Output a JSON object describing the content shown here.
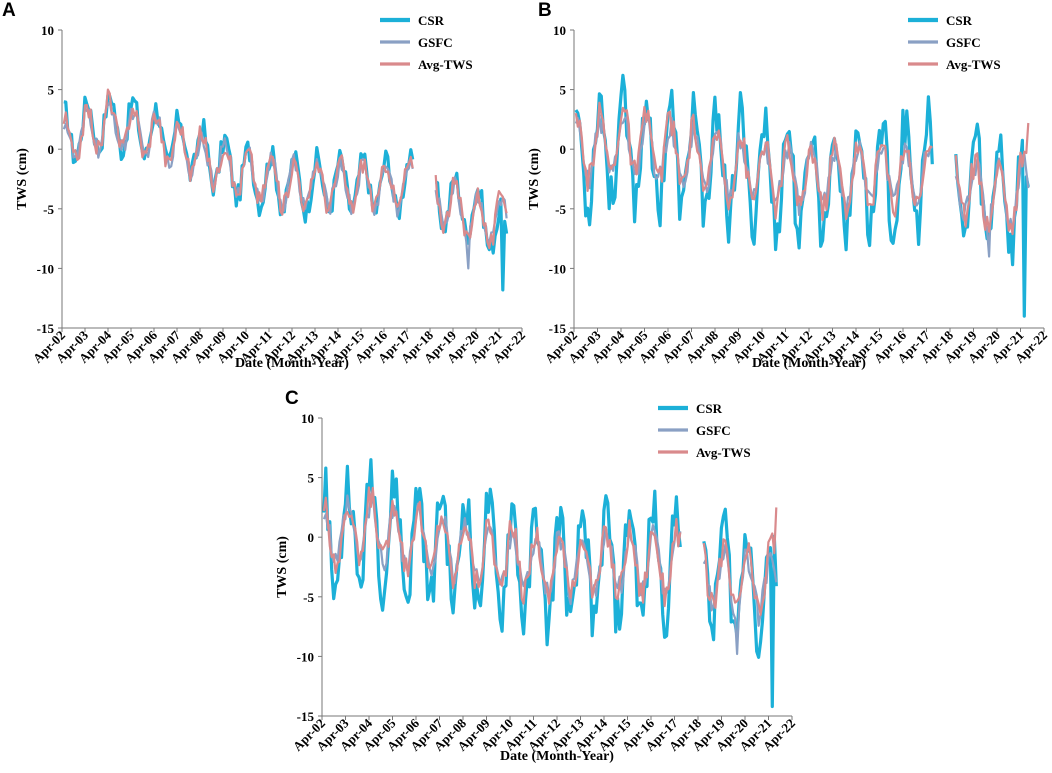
{
  "chart_data": [
    {
      "panel": "A",
      "type": "line",
      "xlabel": "Date (Month-Year)",
      "ylabel": "TWS (cm)",
      "ylim": [
        -15,
        10
      ],
      "yticks": [
        10,
        5,
        0,
        -5,
        -10,
        -15
      ],
      "xlim": [
        2002.25,
        2022.25
      ],
      "x_tick_labels": [
        "Apr-02",
        "Apr-03",
        "Apr-04",
        "Apr-05",
        "Apr-06",
        "Apr-07",
        "Apr-08",
        "Apr-09",
        "Apr-10",
        "Apr-11",
        "Apr-12",
        "Apr-13",
        "Apr-14",
        "Apr-15",
        "Apr-16",
        "Apr-17",
        "Apr-18",
        "Apr-19",
        "Apr-20",
        "Apr-21",
        "Apr-22"
      ],
      "gap": [
        2017.55,
        2018.45
      ],
      "legend": [
        "CSR",
        "GSFC",
        "Avg-TWS"
      ],
      "series": [
        {
          "name": "CSR",
          "color": "#1cb0d8",
          "width": 3.2,
          "trend": [
            [
              2002.3,
              1.0
            ],
            [
              2004.2,
              2.5
            ],
            [
              2006,
              1.5
            ],
            [
              2008,
              0
            ],
            [
              2010,
              -2
            ],
            [
              2012,
              -3
            ],
            [
              2014,
              -3
            ],
            [
              2017.5,
              -3
            ],
            [
              2018.5,
              -4
            ],
            [
              2020,
              -5
            ],
            [
              2021,
              -6.5
            ],
            [
              2021.6,
              -8
            ]
          ],
          "amplitude": 2.2,
          "extremes": [
            [
              2004.25,
              4.5
            ],
            [
              2021.4,
              -11.8
            ]
          ]
        },
        {
          "name": "GSFC",
          "color": "#8aa0c4",
          "width": 2.2,
          "trend": [
            [
              2002.3,
              0.5
            ],
            [
              2004.2,
              2.0
            ],
            [
              2006,
              1.2
            ],
            [
              2008,
              -0.3
            ],
            [
              2010,
              -2
            ],
            [
              2012,
              -3
            ],
            [
              2014,
              -3
            ],
            [
              2017.5,
              -3.2
            ],
            [
              2018.5,
              -4
            ],
            [
              2020,
              -5.5
            ],
            [
              2021,
              -6
            ],
            [
              2021.6,
              -6
            ]
          ],
          "amplitude": 1.8,
          "extremes": [
            [
              2019.9,
              -10
            ]
          ]
        },
        {
          "name": "Avg-TWS",
          "color": "#d98a8c",
          "width": 2.2,
          "trend": [
            [
              2002.3,
              0.5
            ],
            [
              2004.2,
              2.2
            ],
            [
              2006,
              1.3
            ],
            [
              2008,
              -0.2
            ],
            [
              2010,
              -2
            ],
            [
              2012,
              -3
            ],
            [
              2014,
              -3
            ],
            [
              2017.5,
              -3
            ],
            [
              2018.5,
              -4
            ],
            [
              2020,
              -5.5
            ],
            [
              2021,
              -6.2
            ],
            [
              2021.6,
              -5
            ]
          ],
          "amplitude": 1.9,
          "extremes": [
            [
              2004.25,
              5
            ]
          ]
        }
      ]
    },
    {
      "panel": "B",
      "type": "line",
      "xlabel": "Date (Month-Year)",
      "ylabel": "TWS (cm)",
      "ylim": [
        -15,
        10
      ],
      "yticks": [
        10,
        5,
        0,
        -5,
        -10,
        -15
      ],
      "xlim": [
        2002.25,
        2022.25
      ],
      "x_tick_labels": [
        "Apr-02",
        "Apr-03",
        "Apr-04",
        "Apr-05",
        "Apr-06",
        "Apr-07",
        "Apr-08",
        "Apr-09",
        "Apr-10",
        "Apr-11",
        "Apr-12",
        "Apr-13",
        "Apr-14",
        "Apr-15",
        "Apr-16",
        "Apr-17",
        "Apr-18",
        "Apr-19",
        "Apr-20",
        "Apr-21",
        "Apr-22"
      ],
      "gap": [
        2017.55,
        2018.45
      ],
      "legend": [
        "CSR",
        "GSFC",
        "Avg-TWS"
      ],
      "series": [
        {
          "name": "CSR",
          "color": "#1cb0d8",
          "width": 3.2,
          "trend": [
            [
              2002.3,
              -1
            ],
            [
              2004.2,
              0.5
            ],
            [
              2006,
              -0.5
            ],
            [
              2008,
              -1
            ],
            [
              2010,
              -2
            ],
            [
              2012,
              -3
            ],
            [
              2014,
              -2.5
            ],
            [
              2017.5,
              -2
            ],
            [
              2018.5,
              -3
            ],
            [
              2020,
              -3.5
            ],
            [
              2021,
              -4
            ],
            [
              2021.6,
              -4
            ]
          ],
          "amplitude": 4.5,
          "extremes": [
            [
              2004.3,
              6.2
            ],
            [
              2021.45,
              -14
            ]
          ]
        },
        {
          "name": "GSFC",
          "color": "#8aa0c4",
          "width": 2.2,
          "trend": [
            [
              2002.3,
              -0.5
            ],
            [
              2004.2,
              0.5
            ],
            [
              2006,
              -0.3
            ],
            [
              2008,
              -1
            ],
            [
              2010,
              -1.8
            ],
            [
              2012,
              -2.5
            ],
            [
              2014,
              -2.2
            ],
            [
              2017.5,
              -2
            ],
            [
              2018.5,
              -3
            ],
            [
              2020,
              -4
            ],
            [
              2021,
              -4
            ],
            [
              2021.6,
              -3
            ]
          ],
          "amplitude": 2.3,
          "extremes": [
            [
              2019.9,
              -9
            ]
          ]
        },
        {
          "name": "Avg-TWS",
          "color": "#d98a8c",
          "width": 2.2,
          "trend": [
            [
              2002.3,
              -0.5
            ],
            [
              2004.2,
              1
            ],
            [
              2006,
              0
            ],
            [
              2008,
              -1
            ],
            [
              2010,
              -1.8
            ],
            [
              2012,
              -2.5
            ],
            [
              2014,
              -2.2
            ],
            [
              2017.5,
              -2
            ],
            [
              2018.5,
              -3
            ],
            [
              2020,
              -3.8
            ],
            [
              2021,
              -4
            ],
            [
              2021.6,
              -2
            ]
          ],
          "amplitude": 2.6,
          "extremes": [
            [
              2021.6,
              2.2
            ]
          ]
        }
      ]
    },
    {
      "panel": "C",
      "type": "line",
      "xlabel": "Date (Month-Year)",
      "ylabel": "TWS (cm)",
      "ylim": [
        -15,
        10
      ],
      "yticks": [
        10,
        5,
        0,
        -5,
        -10,
        -15
      ],
      "xlim": [
        2002.25,
        2022.25
      ],
      "x_tick_labels": [
        "Apr-02",
        "Apr-03",
        "Apr-04",
        "Apr-05",
        "Apr-06",
        "Apr-07",
        "Apr-08",
        "Apr-09",
        "Apr-10",
        "Apr-11",
        "Apr-12",
        "Apr-13",
        "Apr-14",
        "Apr-15",
        "Apr-16",
        "Apr-17",
        "Apr-18",
        "Apr-19",
        "Apr-20",
        "Apr-21",
        "Apr-22"
      ],
      "gap": [
        2017.55,
        2018.45
      ],
      "legend": [
        "CSR",
        "GSFC",
        "Avg-TWS"
      ],
      "series": [
        {
          "name": "CSR",
          "color": "#1cb0d8",
          "width": 3.2,
          "trend": [
            [
              2002.3,
              -0.5
            ],
            [
              2004.2,
              0.8
            ],
            [
              2006,
              -0.5
            ],
            [
              2008,
              -1
            ],
            [
              2010,
              -2
            ],
            [
              2012,
              -3
            ],
            [
              2014,
              -2.5
            ],
            [
              2017.5,
              -2
            ],
            [
              2018.5,
              -3
            ],
            [
              2020,
              -3.5
            ],
            [
              2021,
              -4
            ],
            [
              2021.6,
              -4
            ]
          ],
          "amplitude": 4.6,
          "extremes": [
            [
              2004.3,
              6.5
            ],
            [
              2021.45,
              -14.2
            ]
          ]
        },
        {
          "name": "GSFC",
          "color": "#8aa0c4",
          "width": 2.2,
          "trend": [
            [
              2002.3,
              -0.3
            ],
            [
              2004.2,
              0.5
            ],
            [
              2006,
              -0.3
            ],
            [
              2008,
              -1
            ],
            [
              2010,
              -1.8
            ],
            [
              2012,
              -2.5
            ],
            [
              2014,
              -2.2
            ],
            [
              2017.5,
              -2
            ],
            [
              2018.5,
              -3
            ],
            [
              2020,
              -4
            ],
            [
              2021,
              -4
            ],
            [
              2021.6,
              -3
            ]
          ],
          "amplitude": 2.4,
          "extremes": [
            [
              2019.9,
              -9.8
            ]
          ]
        },
        {
          "name": "Avg-TWS",
          "color": "#d98a8c",
          "width": 2.2,
          "trend": [
            [
              2002.3,
              -0.3
            ],
            [
              2004.2,
              1
            ],
            [
              2006,
              0
            ],
            [
              2008,
              -1
            ],
            [
              2010,
              -1.8
            ],
            [
              2012,
              -2.5
            ],
            [
              2014,
              -2.2
            ],
            [
              2017.5,
              -2
            ],
            [
              2018.5,
              -3
            ],
            [
              2020,
              -3.8
            ],
            [
              2021,
              -4
            ],
            [
              2021.6,
              -2
            ]
          ],
          "amplitude": 2.6,
          "extremes": [
            [
              2021.6,
              2.5
            ]
          ]
        }
      ]
    }
  ]
}
